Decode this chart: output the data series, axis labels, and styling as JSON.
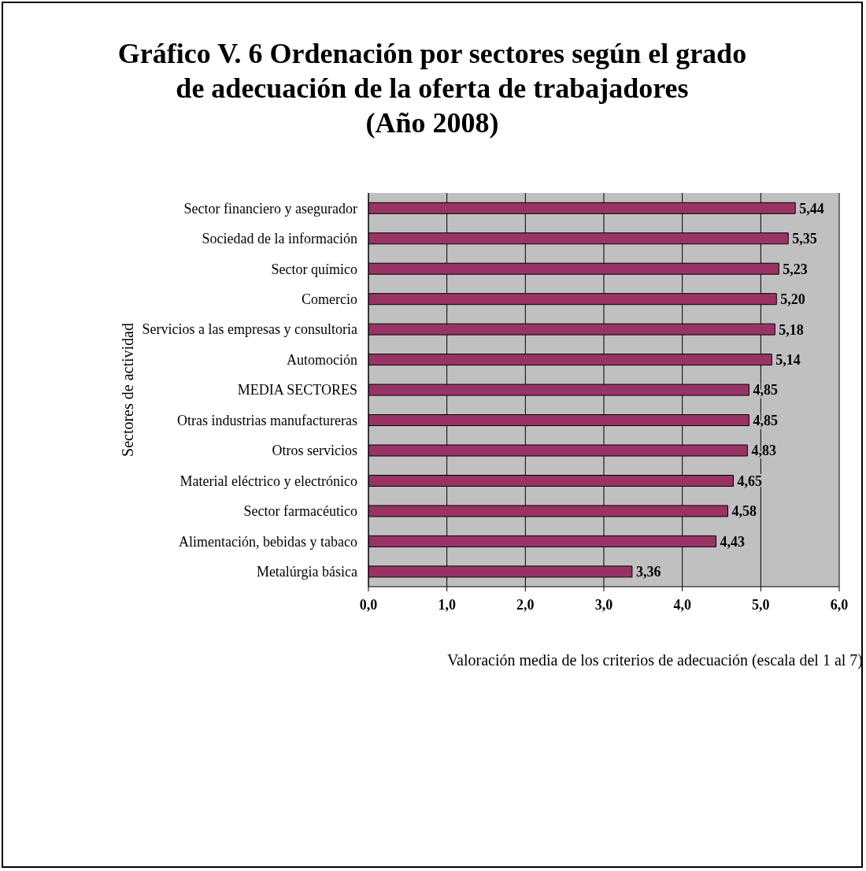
{
  "chart_data": {
    "type": "bar",
    "orientation": "horizontal",
    "title": "Gráfico V. 6 Ordenación por sectores según el grado\nde adecuación de la oferta de trabajadores\n(Año 2008)",
    "xlabel": "Valoración media de los criterios de adecuación (escala del 1 al 7)",
    "ylabel": "Sectores de actividad",
    "categories": [
      "Sector financiero y asegurador",
      "Sociedad de la información",
      "Sector químico",
      "Comercio",
      "Servicios a las empresas y consultoria",
      "Automoción",
      "MEDIA SECTORES",
      "Otras industrias manufactureras",
      "Otros servicios",
      "Material eléctrico y electrónico",
      "Sector farmacéutico",
      "Alimentación, bebidas y tabaco",
      "Metalúrgia básica"
    ],
    "values": [
      5.44,
      5.35,
      5.23,
      5.2,
      5.18,
      5.14,
      4.85,
      4.85,
      4.83,
      4.65,
      4.58,
      4.43,
      3.36
    ],
    "value_labels": [
      "5,44",
      "5,35",
      "5,23",
      "5,20",
      "5,18",
      "5,14",
      "4,85",
      "4,85",
      "4,83",
      "4,65",
      "4,58",
      "4,43",
      "3,36"
    ],
    "color": "#993366",
    "xlim": [
      0,
      6
    ],
    "xticks": [
      {
        "value": 0,
        "label": "0,0"
      },
      {
        "value": 1,
        "label": "1,0"
      },
      {
        "value": 2,
        "label": "2,0"
      },
      {
        "value": 3,
        "label": "3,0"
      },
      {
        "value": 4,
        "label": "4,0"
      },
      {
        "value": 5,
        "label": "5,0"
      },
      {
        "value": 6,
        "label": "6,0"
      }
    ],
    "grid": "x"
  }
}
